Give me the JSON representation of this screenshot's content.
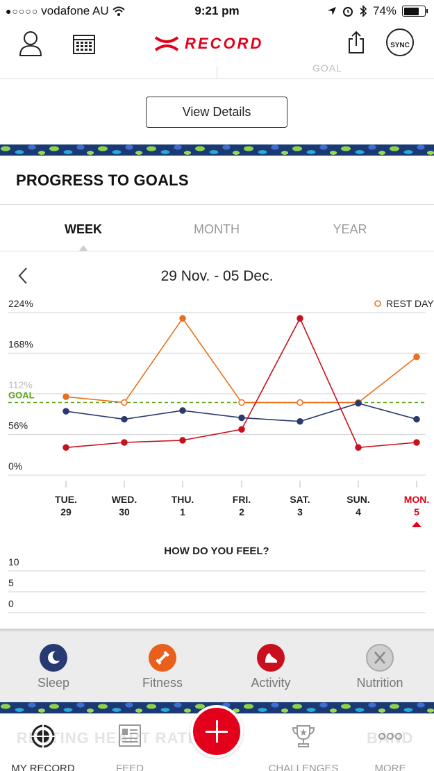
{
  "status_bar": {
    "carrier": "vodafone AU",
    "time": "9:21 pm",
    "battery": "74%",
    "battery_level": 0.74
  },
  "header": {
    "logo_text": "RECORD",
    "sync_label": "SYNC"
  },
  "top": {
    "ghost_label": "GOAL",
    "view_details_label": "View Details"
  },
  "progress": {
    "title": "PROGRESS TO GOALS",
    "tabs": [
      {
        "label": "WEEK",
        "active": true
      },
      {
        "label": "MONTH",
        "active": false
      },
      {
        "label": "YEAR",
        "active": false
      }
    ],
    "date_range": "29 Nov. - 05 Dec."
  },
  "chart_data": {
    "type": "line",
    "y_ticks": [
      "224%",
      "168%",
      "112%",
      "56%",
      "0%"
    ],
    "ylim": [
      0,
      224
    ],
    "goal_label": "GOAL",
    "goal_value": 100,
    "legend": "REST DAY",
    "categories": [
      {
        "day": "TUE.",
        "date": "29"
      },
      {
        "day": "WED.",
        "date": "30"
      },
      {
        "day": "THU.",
        "date": "1"
      },
      {
        "day": "FRI.",
        "date": "2"
      },
      {
        "day": "SAT.",
        "date": "3"
      },
      {
        "day": "SUN.",
        "date": "4"
      },
      {
        "day": "MON.",
        "date": "5"
      }
    ],
    "selected_index": 6,
    "series": [
      {
        "color": "#e8701e",
        "values": [
          108,
          100,
          216,
          100,
          100,
          100,
          163
        ],
        "hollow": [
          false,
          true,
          false,
          true,
          true,
          true,
          false
        ]
      },
      {
        "color": "#2b3a6e",
        "values": [
          88,
          77,
          89,
          79,
          74,
          99,
          77
        ]
      },
      {
        "color": "#c8101e",
        "values": [
          38,
          45,
          48,
          63,
          216,
          38,
          45
        ]
      }
    ],
    "feel": {
      "title": "HOW DO YOU FEEL?",
      "y_ticks": [
        "10",
        "5",
        "0"
      ]
    }
  },
  "categories": [
    {
      "label": "Sleep",
      "color": "#273a74",
      "icon": "moon-icon"
    },
    {
      "label": "Fitness",
      "color": "#e8601c",
      "icon": "dumbbell-icon"
    },
    {
      "label": "Activity",
      "color": "#c8101e",
      "icon": "shoe-icon"
    },
    {
      "label": "Nutrition",
      "color": "#cfcfcf",
      "icon": "utensils-icon"
    }
  ],
  "tab_bar": {
    "items": [
      {
        "label": "MY RECORD",
        "active": true
      },
      {
        "label": "FEED",
        "active": false
      },
      {
        "label": "CHALLENGES",
        "active": false
      },
      {
        "label": "MORE",
        "active": false
      }
    ],
    "ghost_left": "RESTING HEART RATE",
    "ghost_right": "BAND"
  }
}
